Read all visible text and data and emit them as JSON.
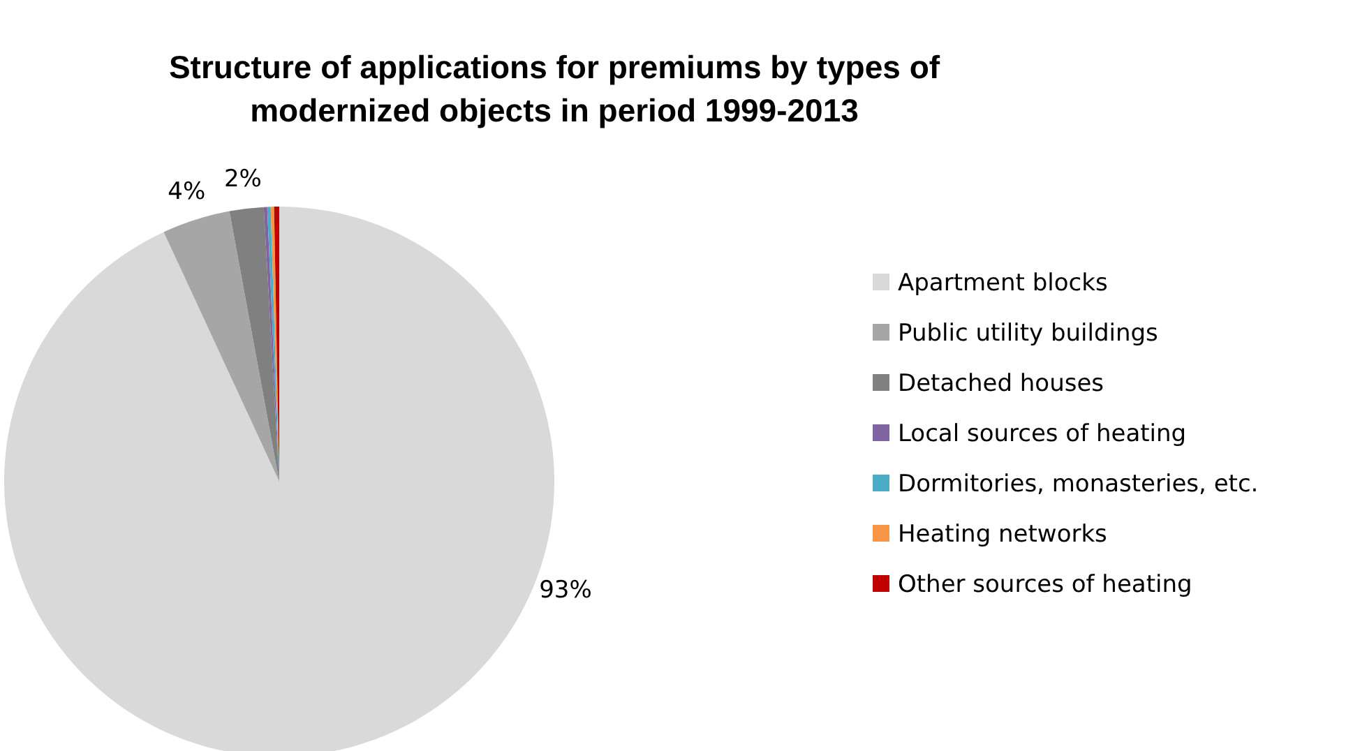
{
  "chart_data": {
    "type": "pie",
    "title": "Structure of applications for premiums by types of\nmodernized objects in period 1999-2013",
    "categories": [
      "Apartment blocks",
      "Public utility buildings",
      "Detached houses",
      "Local sources of heating",
      "Dormitories, monasteries, etc.",
      "Heating networks",
      "Other sources of heating"
    ],
    "values": [
      93.1,
      4,
      2,
      0.2,
      0.2,
      0.2,
      0.3
    ],
    "colors": [
      "#d9d9d9",
      "#a6a6a6",
      "#808080",
      "#8064a2",
      "#4bacc6",
      "#f79646",
      "#c00000"
    ],
    "value_labels": [
      "93%",
      "4%",
      "2%",
      null,
      null,
      null,
      null
    ],
    "legend": "right"
  }
}
